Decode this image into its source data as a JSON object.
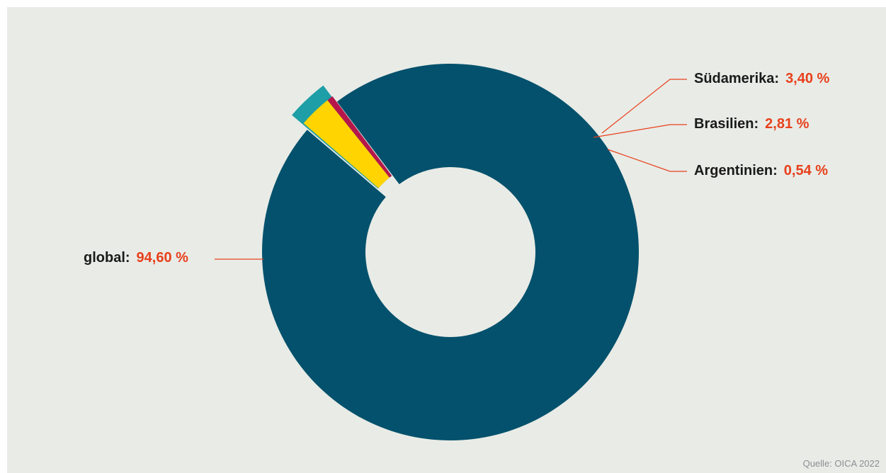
{
  "chart_data": {
    "type": "pie",
    "variant": "donut",
    "slices": [
      {
        "key": "global",
        "label": "global:",
        "value_text": "94,60 %",
        "value": 94.6,
        "color": "#03516c"
      },
      {
        "key": "suedamerika",
        "label": "Südamerika:",
        "value_text": "3,40 %",
        "value": 3.4,
        "color": "#1e9ea6",
        "children": [
          {
            "key": "brasilien",
            "label": "Brasilien:",
            "value_text": "2,81 %",
            "value": 2.81,
            "color": "#ffd400"
          },
          {
            "key": "argentinien",
            "label": "Argentinien:",
            "value_text": "0,54 %",
            "value": 0.54,
            "color": "#b5174b"
          }
        ]
      }
    ],
    "value_color": "#e8401c",
    "leader_color": "#e8401c",
    "source": "Quelle: OICA 2022"
  }
}
